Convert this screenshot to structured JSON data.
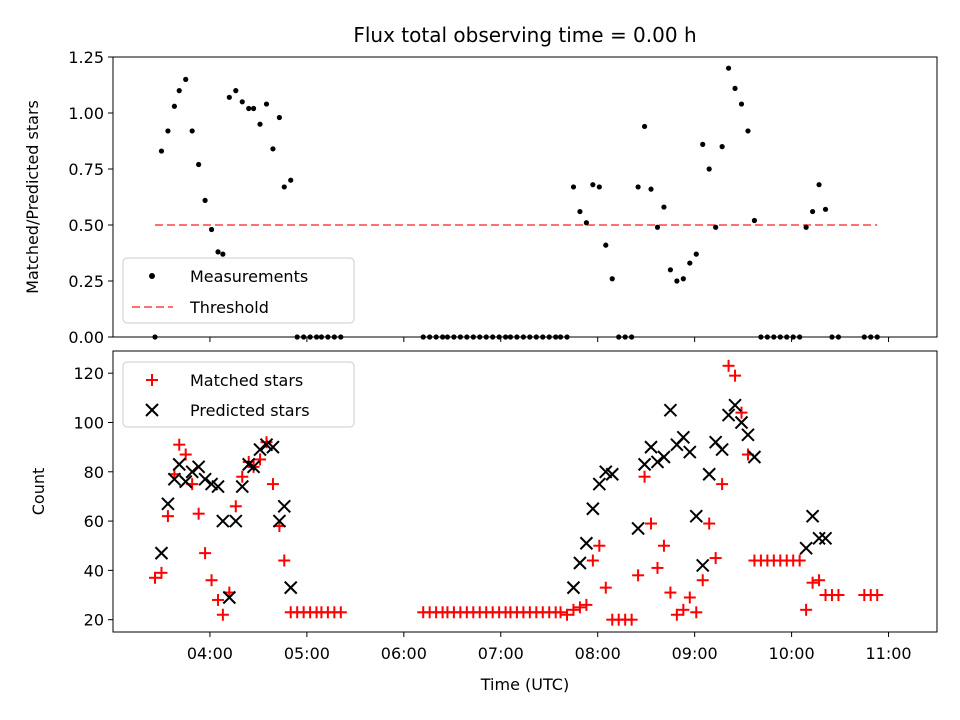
{
  "chart_data": [
    {
      "type": "scatter",
      "title": "Flux total observing time = 0.00 h",
      "xlabel": "",
      "ylabel": "Matched/Predicted stars",
      "ylim": [
        0,
        1.25
      ],
      "xlim": [
        "03:00",
        "11:30"
      ],
      "yticks": [
        "0.00",
        "0.25",
        "0.50",
        "0.75",
        "1.00",
        "1.25"
      ],
      "legend_position": "lower-left",
      "series": [
        {
          "name": "Measurements",
          "color": "#000000",
          "marker": "dot",
          "points": [
            [
              "03:26",
              0.0
            ],
            [
              "03:30",
              0.83
            ],
            [
              "03:34",
              0.92
            ],
            [
              "03:38",
              1.03
            ],
            [
              "03:41",
              1.1
            ],
            [
              "03:45",
              1.15
            ],
            [
              "03:49",
              0.92
            ],
            [
              "03:53",
              0.77
            ],
            [
              "03:57",
              0.61
            ],
            [
              "04:01",
              0.48
            ],
            [
              "04:05",
              0.38
            ],
            [
              "04:08",
              0.37
            ],
            [
              "04:12",
              1.07
            ],
            [
              "04:16",
              1.1
            ],
            [
              "04:20",
              1.05
            ],
            [
              "04:24",
              1.02
            ],
            [
              "04:27",
              1.02
            ],
            [
              "04:31",
              0.95
            ],
            [
              "04:35",
              1.04
            ],
            [
              "04:39",
              0.84
            ],
            [
              "04:43",
              0.98
            ],
            [
              "04:46",
              0.67
            ],
            [
              "04:50",
              0.7
            ],
            [
              "04:54",
              0.0
            ],
            [
              "04:58",
              0.0
            ],
            [
              "05:02",
              0.0
            ],
            [
              "05:06",
              0.0
            ],
            [
              "05:09",
              0.0
            ],
            [
              "05:13",
              0.0
            ],
            [
              "05:17",
              0.0
            ],
            [
              "05:21",
              0.0
            ],
            [
              "06:12",
              0.0
            ],
            [
              "06:16",
              0.0
            ],
            [
              "06:20",
              0.0
            ],
            [
              "06:24",
              0.0
            ],
            [
              "06:27",
              0.0
            ],
            [
              "06:31",
              0.0
            ],
            [
              "06:35",
              0.0
            ],
            [
              "06:39",
              0.0
            ],
            [
              "06:43",
              0.0
            ],
            [
              "06:47",
              0.0
            ],
            [
              "06:51",
              0.0
            ],
            [
              "06:55",
              0.0
            ],
            [
              "06:59",
              0.0
            ],
            [
              "07:03",
              0.0
            ],
            [
              "07:06",
              0.0
            ],
            [
              "07:10",
              0.0
            ],
            [
              "07:14",
              0.0
            ],
            [
              "07:18",
              0.0
            ],
            [
              "07:22",
              0.0
            ],
            [
              "07:26",
              0.0
            ],
            [
              "07:30",
              0.0
            ],
            [
              "07:34",
              0.0
            ],
            [
              "07:37",
              0.0
            ],
            [
              "07:41",
              0.0
            ],
            [
              "07:45",
              0.67
            ],
            [
              "07:49",
              0.56
            ],
            [
              "07:53",
              0.51
            ],
            [
              "07:57",
              0.68
            ],
            [
              "08:01",
              0.67
            ],
            [
              "08:05",
              0.41
            ],
            [
              "08:09",
              0.26
            ],
            [
              "08:13",
              0.0
            ],
            [
              "08:17",
              0.0
            ],
            [
              "08:21",
              0.0
            ],
            [
              "08:25",
              0.67
            ],
            [
              "08:29",
              0.94
            ],
            [
              "08:33",
              0.66
            ],
            [
              "08:37",
              0.49
            ],
            [
              "08:41",
              0.58
            ],
            [
              "08:45",
              0.3
            ],
            [
              "08:49",
              0.25
            ],
            [
              "08:53",
              0.26
            ],
            [
              "08:57",
              0.33
            ],
            [
              "09:01",
              0.37
            ],
            [
              "09:05",
              0.86
            ],
            [
              "09:09",
              0.75
            ],
            [
              "09:13",
              0.49
            ],
            [
              "09:17",
              0.85
            ],
            [
              "09:21",
              1.2
            ],
            [
              "09:25",
              1.11
            ],
            [
              "09:29",
              1.04
            ],
            [
              "09:33",
              0.92
            ],
            [
              "09:37",
              0.52
            ],
            [
              "09:41",
              0.0
            ],
            [
              "09:45",
              0.0
            ],
            [
              "09:49",
              0.0
            ],
            [
              "09:53",
              0.0
            ],
            [
              "09:57",
              0.0
            ],
            [
              "10:01",
              0.0
            ],
            [
              "10:05",
              0.0
            ],
            [
              "10:09",
              0.49
            ],
            [
              "10:13",
              0.56
            ],
            [
              "10:17",
              0.68
            ],
            [
              "10:21",
              0.57
            ],
            [
              "10:25",
              0.0
            ],
            [
              "10:29",
              0.0
            ],
            [
              "10:45",
              0.0
            ],
            [
              "10:49",
              0.0
            ],
            [
              "10:53",
              0.0
            ]
          ]
        },
        {
          "name": "Threshold",
          "color": "#ff7070",
          "style": "dashed",
          "points": [
            [
              "03:26",
              0.5
            ],
            [
              "10:53",
              0.5
            ]
          ]
        }
      ]
    },
    {
      "type": "scatter",
      "title": "",
      "xlabel": "Time (UTC)",
      "ylabel": "Count",
      "ylim": [
        15,
        129
      ],
      "xlim": [
        "03:00",
        "11:30"
      ],
      "yticks": [
        "20",
        "40",
        "60",
        "80",
        "100",
        "120"
      ],
      "xticks": [
        "04:00",
        "05:00",
        "06:00",
        "07:00",
        "08:00",
        "09:00",
        "10:00",
        "11:00"
      ],
      "legend_position": "upper-left",
      "series": [
        {
          "name": "Matched stars",
          "color": "#ff0000",
          "marker": "plus",
          "points": [
            [
              "03:26",
              37
            ],
            [
              "03:30",
              39
            ],
            [
              "03:34",
              62
            ],
            [
              "03:38",
              79
            ],
            [
              "03:41",
              91
            ],
            [
              "03:45",
              87
            ],
            [
              "03:49",
              75
            ],
            [
              "03:53",
              63
            ],
            [
              "03:57",
              47
            ],
            [
              "04:01",
              36
            ],
            [
              "04:05",
              28
            ],
            [
              "04:08",
              22
            ],
            [
              "04:12",
              31
            ],
            [
              "04:16",
              66
            ],
            [
              "04:20",
              78
            ],
            [
              "04:24",
              84
            ],
            [
              "04:27",
              82
            ],
            [
              "04:31",
              85
            ],
            [
              "04:35",
              92
            ],
            [
              "04:39",
              75
            ],
            [
              "04:43",
              58
            ],
            [
              "04:46",
              44
            ],
            [
              "04:50",
              23
            ],
            [
              "04:54",
              23
            ],
            [
              "04:58",
              23
            ],
            [
              "05:02",
              23
            ],
            [
              "05:06",
              23
            ],
            [
              "05:09",
              23
            ],
            [
              "05:13",
              23
            ],
            [
              "05:17",
              23
            ],
            [
              "05:21",
              23
            ],
            [
              "06:12",
              23
            ],
            [
              "06:16",
              23
            ],
            [
              "06:20",
              23
            ],
            [
              "06:24",
              23
            ],
            [
              "06:27",
              23
            ],
            [
              "06:31",
              23
            ],
            [
              "06:35",
              23
            ],
            [
              "06:39",
              23
            ],
            [
              "06:43",
              23
            ],
            [
              "06:47",
              23
            ],
            [
              "06:51",
              23
            ],
            [
              "06:55",
              23
            ],
            [
              "06:59",
              23
            ],
            [
              "07:03",
              23
            ],
            [
              "07:06",
              23
            ],
            [
              "07:10",
              23
            ],
            [
              "07:14",
              23
            ],
            [
              "07:18",
              23
            ],
            [
              "07:22",
              23
            ],
            [
              "07:26",
              23
            ],
            [
              "07:30",
              23
            ],
            [
              "07:34",
              23
            ],
            [
              "07:37",
              23
            ],
            [
              "07:41",
              22
            ],
            [
              "07:45",
              24
            ],
            [
              "07:49",
              25
            ],
            [
              "07:53",
              26
            ],
            [
              "07:57",
              44
            ],
            [
              "08:01",
              50
            ],
            [
              "08:05",
              33
            ],
            [
              "08:09",
              20
            ],
            [
              "08:13",
              20
            ],
            [
              "08:17",
              20
            ],
            [
              "08:21",
              20
            ],
            [
              "08:25",
              38
            ],
            [
              "08:29",
              78
            ],
            [
              "08:33",
              59
            ],
            [
              "08:37",
              41
            ],
            [
              "08:41",
              50
            ],
            [
              "08:45",
              31
            ],
            [
              "08:49",
              22
            ],
            [
              "08:53",
              24
            ],
            [
              "08:57",
              29
            ],
            [
              "09:01",
              23
            ],
            [
              "09:05",
              36
            ],
            [
              "09:09",
              59
            ],
            [
              "09:13",
              45
            ],
            [
              "09:17",
              75
            ],
            [
              "09:21",
              123
            ],
            [
              "09:25",
              119
            ],
            [
              "09:29",
              104
            ],
            [
              "09:33",
              87
            ],
            [
              "09:37",
              44
            ],
            [
              "09:41",
              44
            ],
            [
              "09:45",
              44
            ],
            [
              "09:49",
              44
            ],
            [
              "09:53",
              44
            ],
            [
              "09:57",
              44
            ],
            [
              "10:01",
              44
            ],
            [
              "10:05",
              44
            ],
            [
              "10:09",
              24
            ],
            [
              "10:13",
              35
            ],
            [
              "10:17",
              36
            ],
            [
              "10:21",
              30
            ],
            [
              "10:25",
              30
            ],
            [
              "10:29",
              30
            ],
            [
              "10:45",
              30
            ],
            [
              "10:49",
              30
            ],
            [
              "10:53",
              30
            ]
          ]
        },
        {
          "name": "Predicted stars",
          "color": "#000000",
          "marker": "x",
          "points": [
            [
              "03:30",
              47
            ],
            [
              "03:34",
              67
            ],
            [
              "03:38",
              77
            ],
            [
              "03:41",
              83
            ],
            [
              "03:45",
              76
            ],
            [
              "03:49",
              80
            ],
            [
              "03:53",
              82
            ],
            [
              "03:57",
              77
            ],
            [
              "04:01",
              75
            ],
            [
              "04:05",
              74
            ],
            [
              "04:08",
              60
            ],
            [
              "04:12",
              29
            ],
            [
              "04:16",
              60
            ],
            [
              "04:20",
              74
            ],
            [
              "04:24",
              83
            ],
            [
              "04:27",
              82
            ],
            [
              "04:31",
              89
            ],
            [
              "04:35",
              91
            ],
            [
              "04:39",
              90
            ],
            [
              "04:43",
              60
            ],
            [
              "04:46",
              66
            ],
            [
              "04:50",
              33
            ],
            [
              "07:45",
              33
            ],
            [
              "07:49",
              43
            ],
            [
              "07:53",
              51
            ],
            [
              "07:57",
              65
            ],
            [
              "08:01",
              75
            ],
            [
              "08:05",
              80
            ],
            [
              "08:09",
              79
            ],
            [
              "08:25",
              57
            ],
            [
              "08:29",
              83
            ],
            [
              "08:33",
              90
            ],
            [
              "08:37",
              84
            ],
            [
              "08:41",
              86
            ],
            [
              "08:45",
              105
            ],
            [
              "08:49",
              91
            ],
            [
              "08:53",
              94
            ],
            [
              "08:57",
              88
            ],
            [
              "09:01",
              62
            ],
            [
              "09:05",
              42
            ],
            [
              "09:09",
              79
            ],
            [
              "09:13",
              92
            ],
            [
              "09:17",
              89
            ],
            [
              "09:21",
              103
            ],
            [
              "09:25",
              107
            ],
            [
              "09:29",
              100
            ],
            [
              "09:33",
              95
            ],
            [
              "09:37",
              86
            ],
            [
              "10:09",
              49
            ],
            [
              "10:13",
              62
            ],
            [
              "10:17",
              53
            ],
            [
              "10:21",
              53
            ]
          ]
        }
      ]
    }
  ]
}
